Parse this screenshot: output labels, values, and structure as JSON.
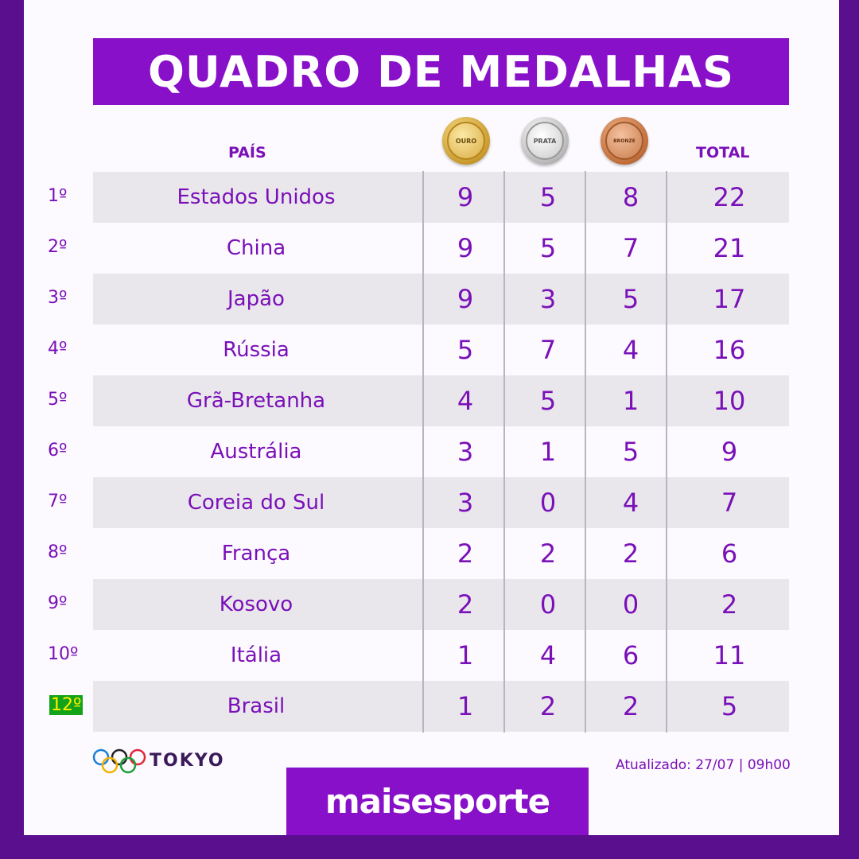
{
  "title": "QUADRO DE MEDALHAS",
  "headers": {
    "country": "PAÍS",
    "gold": "OURO",
    "silver": "PRATA",
    "bronze": "BRONZE",
    "total": "TOTAL"
  },
  "rows": [
    {
      "rank": "1º",
      "country": "Estados Unidos",
      "gold": "9",
      "silver": "5",
      "bronze": "8",
      "total": "22"
    },
    {
      "rank": "2º",
      "country": "China",
      "gold": "9",
      "silver": "5",
      "bronze": "7",
      "total": "21"
    },
    {
      "rank": "3º",
      "country": "Japão",
      "gold": "9",
      "silver": "3",
      "bronze": "5",
      "total": "17"
    },
    {
      "rank": "4º",
      "country": "Rússia",
      "gold": "5",
      "silver": "7",
      "bronze": "4",
      "total": "16"
    },
    {
      "rank": "5º",
      "country": "Grã-Bretanha",
      "gold": "4",
      "silver": "5",
      "bronze": "1",
      "total": "10"
    },
    {
      "rank": "6º",
      "country": "Austrália",
      "gold": "3",
      "silver": "1",
      "bronze": "5",
      "total": "9"
    },
    {
      "rank": "7º",
      "country": "Coreia do Sul",
      "gold": "3",
      "silver": "0",
      "bronze": "4",
      "total": "7"
    },
    {
      "rank": "8º",
      "country": "França",
      "gold": "2",
      "silver": "2",
      "bronze": "2",
      "total": "6"
    },
    {
      "rank": "9º",
      "country": "Kosovo",
      "gold": "2",
      "silver": "0",
      "bronze": "0",
      "total": "2"
    },
    {
      "rank": "10º",
      "country": "Itália",
      "gold": "1",
      "silver": "4",
      "bronze": "6",
      "total": "11"
    },
    {
      "rank": "12º",
      "country": "Brasil",
      "gold": "1",
      "silver": "2",
      "bronze": "2",
      "total": "5"
    }
  ],
  "footer": {
    "event": "TOKYO",
    "updated": "Atualizado: 27/07 | 09h00",
    "brand": "maisesporte"
  },
  "colors": {
    "purple": "#8710c8",
    "text_purple": "#7a10b8",
    "background": "#5a0f8f",
    "row_shade": "#e9e7ec",
    "highlight_bg": "#14a318",
    "highlight_text": "#ffee00"
  }
}
